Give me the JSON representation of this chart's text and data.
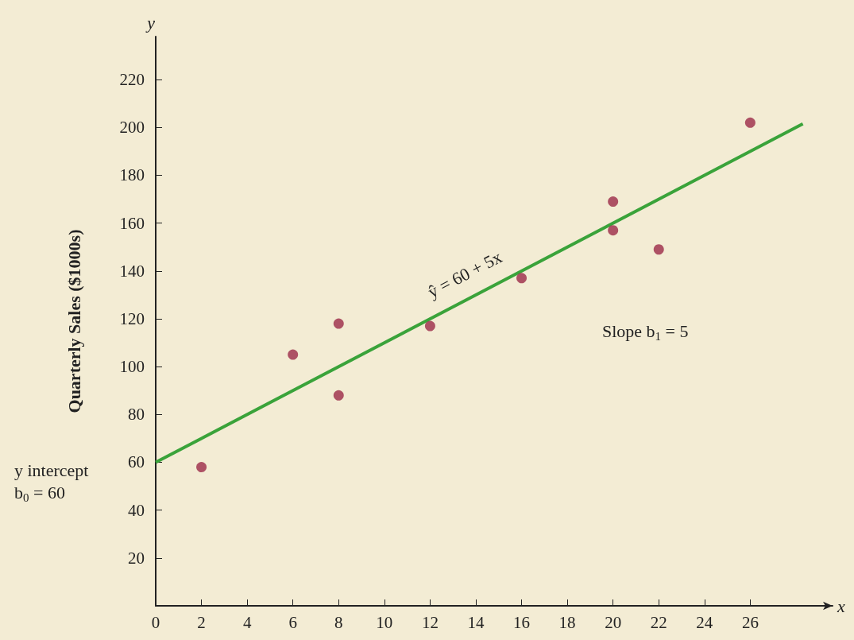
{
  "chart_data": {
    "type": "scatter",
    "xlabel": "x",
    "ylabel": "Quarterly Sales ($1000s)",
    "x": [
      2,
      6,
      8,
      8,
      12,
      16,
      20,
      20,
      22,
      26
    ],
    "series": [
      {
        "marker": "circle",
        "color": "#9b2a47",
        "values": [
          58,
          105,
          88,
          118,
          117,
          137,
          157,
          169,
          149,
          202
        ]
      },
      {
        "type": "line",
        "color": "#3aa33a",
        "x": [
          0,
          28.3
        ],
        "values": [
          60,
          201.5
        ]
      }
    ],
    "xlim": [
      0,
      29.6
    ],
    "xticks": [
      0,
      2,
      4,
      6,
      8,
      10,
      12,
      14,
      16,
      18,
      20,
      22,
      24,
      26
    ],
    "ylim": [
      0,
      238
    ],
    "yticks": [
      20,
      40,
      60,
      80,
      100,
      120,
      140,
      160,
      180,
      200,
      220
    ],
    "grid": false,
    "annotations": [
      "y",
      "y intercept\nb$_{0}$ = 60",
      "Slope b$_{1}$ = 5",
      "ŷ = 60 + 5x"
    ]
  }
}
